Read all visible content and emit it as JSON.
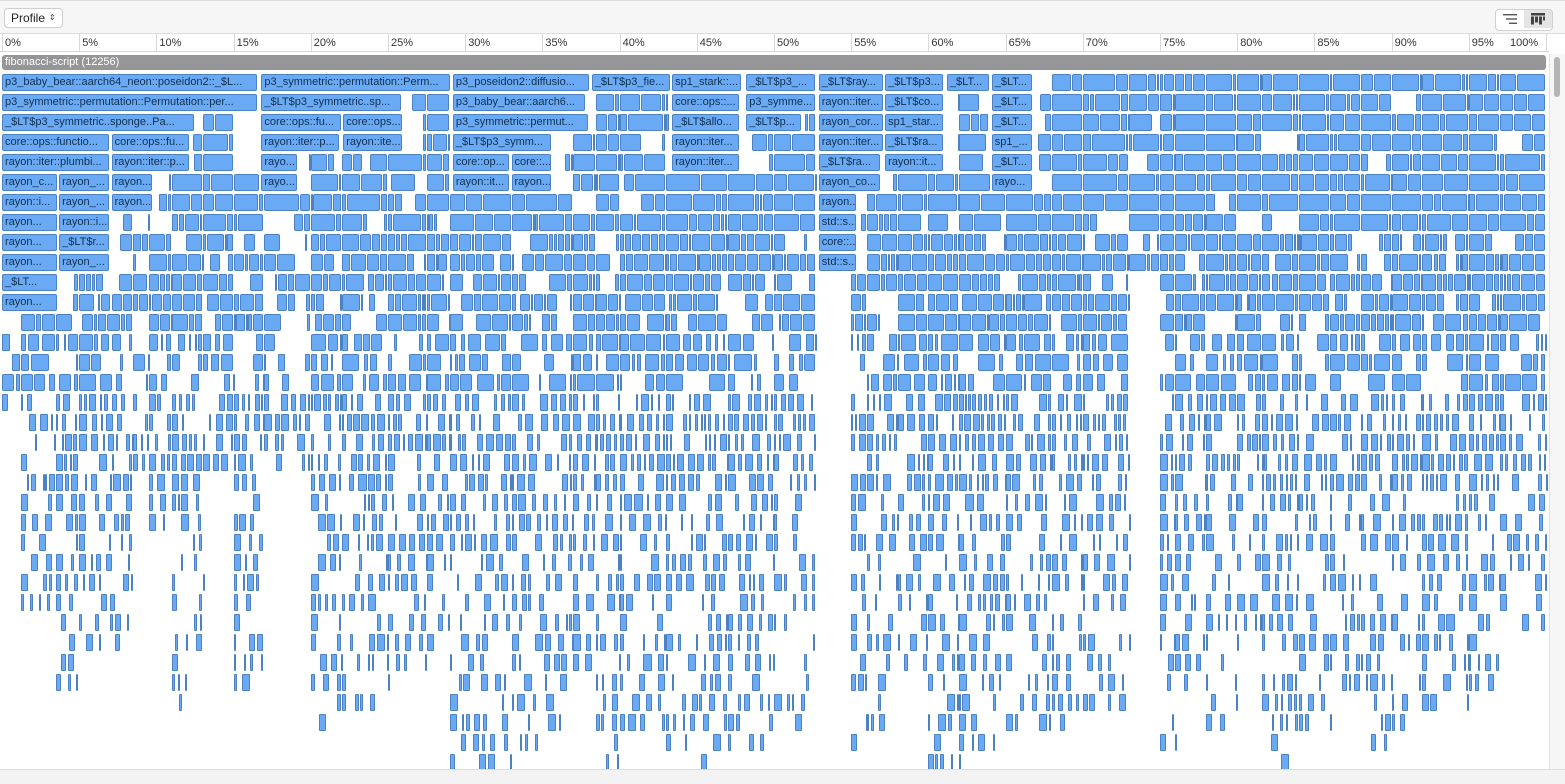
{
  "toolbar": {
    "profile_label": "Profile",
    "chevron_icon": "up-down-chevron-icon",
    "list_view_icon": "list-view-icon",
    "flame_view_icon": "flame-graph-icon"
  },
  "ruler": {
    "ticks": [
      "0%",
      "5%",
      "10%",
      "15%",
      "20%",
      "25%",
      "30%",
      "35%",
      "40%",
      "45%",
      "50%",
      "55%",
      "60%",
      "65%",
      "70%",
      "75%",
      "80%",
      "85%",
      "90%",
      "95%",
      "100%"
    ]
  },
  "root": {
    "label": "fibonacci-script (12256)"
  },
  "colors": {
    "bar_fill": "#6aaaf4",
    "bar_border": "#4d82c2",
    "root_fill": "#969698"
  },
  "frames": [
    {
      "row": 0,
      "start": 0.0,
      "end": 16.6,
      "label": "p3_baby_bear::aarch64_neon::poseidon2::_$L..."
    },
    {
      "row": 0,
      "start": 16.8,
      "end": 29.1,
      "label": "p3_symmetric::permutation::Perm..."
    },
    {
      "row": 0,
      "start": 29.2,
      "end": 38.1,
      "label": "p3_poseidon2::diffusio..."
    },
    {
      "row": 0,
      "start": 38.2,
      "end": 43.3,
      "label": "_$LT$p3_fie..."
    },
    {
      "row": 0,
      "start": 43.4,
      "end": 47.9,
      "label": "sp1_stark::..."
    },
    {
      "row": 0,
      "start": 48.2,
      "end": 52.7,
      "label": "_$LT$p3_..."
    },
    {
      "row": 0,
      "start": 52.9,
      "end": 57.1,
      "label": "_$LT$ray..."
    },
    {
      "row": 0,
      "start": 57.2,
      "end": 61.0,
      "label": "_$LT$p3..."
    },
    {
      "row": 0,
      "start": 61.2,
      "end": 64.0,
      "label": "_$LT..."
    },
    {
      "row": 0,
      "start": 64.1,
      "end": 66.8,
      "label": "_$LT..."
    },
    {
      "row": 1,
      "start": 0.0,
      "end": 16.6,
      "label": "p3_symmetric::permutation::Permutation::per..."
    },
    {
      "row": 1,
      "start": 16.8,
      "end": 25.9,
      "label": "_$LT$p3_symmetric..sp..."
    },
    {
      "row": 1,
      "start": 29.2,
      "end": 37.8,
      "label": "p3_baby_bear::aarch6..."
    },
    {
      "row": 1,
      "start": 43.4,
      "end": 47.8,
      "label": "core::ops::..."
    },
    {
      "row": 1,
      "start": 48.2,
      "end": 52.7,
      "label": "p3_symme..."
    },
    {
      "row": 1,
      "start": 52.9,
      "end": 57.1,
      "label": "rayon::iter..."
    },
    {
      "row": 1,
      "start": 57.2,
      "end": 61.0,
      "label": "_$LT$co..."
    },
    {
      "row": 1,
      "start": 64.1,
      "end": 66.8,
      "label": "_$LT..."
    },
    {
      "row": 2,
      "start": 0.0,
      "end": 12.5,
      "label": "_$LT$p3_symmetric..sponge..Pa..."
    },
    {
      "row": 2,
      "start": 16.8,
      "end": 22.0,
      "label": "core::ops::fu..."
    },
    {
      "row": 2,
      "start": 22.1,
      "end": 26.0,
      "label": "core::ops..."
    },
    {
      "row": 2,
      "start": 29.2,
      "end": 38.0,
      "label": "p3_symmetric::permut..."
    },
    {
      "row": 2,
      "start": 43.4,
      "end": 47.8,
      "label": "_$LT$allo..."
    },
    {
      "row": 2,
      "start": 48.2,
      "end": 51.8,
      "label": "_$LT$p..."
    },
    {
      "row": 2,
      "start": 52.9,
      "end": 57.1,
      "label": "rayon_cor..."
    },
    {
      "row": 2,
      "start": 57.2,
      "end": 61.0,
      "label": "sp1_star..."
    },
    {
      "row": 2,
      "start": 64.1,
      "end": 66.8,
      "label": "_$LT..."
    },
    {
      "row": 3,
      "start": 0.0,
      "end": 7.0,
      "label": "core::ops::functio..."
    },
    {
      "row": 3,
      "start": 7.1,
      "end": 12.2,
      "label": "core::ops::fu..."
    },
    {
      "row": 3,
      "start": 16.8,
      "end": 21.9,
      "label": "rayon::iter::p..."
    },
    {
      "row": 3,
      "start": 22.1,
      "end": 26.0,
      "label": "rayon::ite..."
    },
    {
      "row": 3,
      "start": 29.2,
      "end": 35.6,
      "label": "_$LT$p3_symm..."
    },
    {
      "row": 3,
      "start": 43.4,
      "end": 47.8,
      "label": "rayon::iter..."
    },
    {
      "row": 3,
      "start": 52.9,
      "end": 57.1,
      "label": "rayon::iter..."
    },
    {
      "row": 3,
      "start": 57.2,
      "end": 61.0,
      "label": "_$LT$ra..."
    },
    {
      "row": 3,
      "start": 64.1,
      "end": 66.8,
      "label": "sp1_..."
    },
    {
      "row": 4,
      "start": 0.0,
      "end": 7.0,
      "label": "rayon::iter::plumbi..."
    },
    {
      "row": 4,
      "start": 7.1,
      "end": 12.2,
      "label": "rayon::iter::p..."
    },
    {
      "row": 4,
      "start": 16.8,
      "end": 19.2,
      "label": "rayo..."
    },
    {
      "row": 4,
      "start": 29.2,
      "end": 32.9,
      "label": "core::op..."
    },
    {
      "row": 4,
      "start": 33.0,
      "end": 35.6,
      "label": "core::..."
    },
    {
      "row": 4,
      "start": 43.4,
      "end": 47.8,
      "label": "rayon::iter..."
    },
    {
      "row": 4,
      "start": 52.9,
      "end": 56.9,
      "label": "_$LT$ra..."
    },
    {
      "row": 4,
      "start": 57.2,
      "end": 61.0,
      "label": "rayon::it..."
    },
    {
      "row": 4,
      "start": 64.1,
      "end": 66.8,
      "label": "_$LT..."
    },
    {
      "row": 5,
      "start": 0.0,
      "end": 3.6,
      "label": "rayon_c..."
    },
    {
      "row": 5,
      "start": 3.7,
      "end": 7.0,
      "label": "rayon_..."
    },
    {
      "row": 5,
      "start": 7.1,
      "end": 9.8,
      "label": "rayon..."
    },
    {
      "row": 5,
      "start": 16.8,
      "end": 19.2,
      "label": "rayo..."
    },
    {
      "row": 5,
      "start": 29.2,
      "end": 32.9,
      "label": "rayon::it..."
    },
    {
      "row": 5,
      "start": 33.0,
      "end": 35.6,
      "label": "rayon..."
    },
    {
      "row": 5,
      "start": 52.9,
      "end": 56.9,
      "label": "rayon_co..."
    },
    {
      "row": 5,
      "start": 64.1,
      "end": 66.8,
      "label": "rayo..."
    },
    {
      "row": 6,
      "start": 0.0,
      "end": 3.6,
      "label": "rayon::i..."
    },
    {
      "row": 6,
      "start": 3.7,
      "end": 7.0,
      "label": "rayon_..."
    },
    {
      "row": 6,
      "start": 7.1,
      "end": 9.8,
      "label": "rayon..."
    },
    {
      "row": 6,
      "start": 52.9,
      "end": 55.4,
      "label": "rayon..."
    },
    {
      "row": 7,
      "start": 0.0,
      "end": 3.6,
      "label": "rayon..."
    },
    {
      "row": 7,
      "start": 3.7,
      "end": 7.0,
      "label": "rayon::i..."
    },
    {
      "row": 7,
      "start": 52.9,
      "end": 55.4,
      "label": "std::s..."
    },
    {
      "row": 8,
      "start": 0.0,
      "end": 3.6,
      "label": "rayon..."
    },
    {
      "row": 8,
      "start": 3.7,
      "end": 7.0,
      "label": "_$LT$r..."
    },
    {
      "row": 8,
      "start": 52.9,
      "end": 55.4,
      "label": "core::..."
    },
    {
      "row": 9,
      "start": 0.0,
      "end": 3.6,
      "label": "rayon..."
    },
    {
      "row": 9,
      "start": 3.7,
      "end": 7.0,
      "label": "rayon_..."
    },
    {
      "row": 9,
      "start": 52.9,
      "end": 55.4,
      "label": "std::s..."
    },
    {
      "row": 10,
      "start": 0.0,
      "end": 3.6,
      "label": "_$LT..."
    },
    {
      "row": 11,
      "start": 0.0,
      "end": 3.6,
      "label": "rayon..."
    }
  ]
}
